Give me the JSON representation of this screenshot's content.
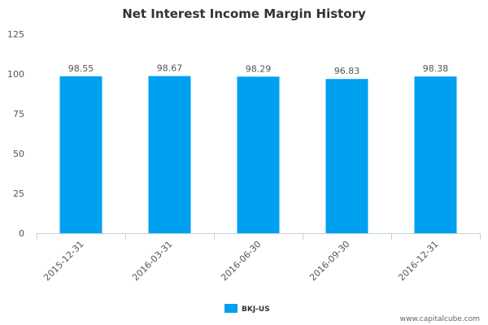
{
  "chart_data": {
    "type": "bar",
    "title": "Net Interest Income Margin History",
    "categories": [
      "2015-12-31",
      "2016-03-31",
      "2016-06-30",
      "2016-09-30",
      "2016-12-31"
    ],
    "series": [
      {
        "name": "BKJ-US",
        "values": [
          98.55,
          98.67,
          98.29,
          96.83,
          98.38
        ],
        "labels": [
          "98.55",
          "98.67",
          "98.29",
          "96.83",
          "98.38"
        ],
        "color": "#00a0f0"
      }
    ],
    "yticks": [
      "0",
      "25",
      "50",
      "75",
      "100",
      "125"
    ],
    "ylim": [
      0,
      125
    ],
    "xlabel": "",
    "ylabel": "",
    "grid": false,
    "legend_position": "bottom-center"
  },
  "watermark": "www.capitalcube.com",
  "colors": {
    "axis": "#c0d0e0",
    "text": "#555555",
    "title": "#333333"
  }
}
